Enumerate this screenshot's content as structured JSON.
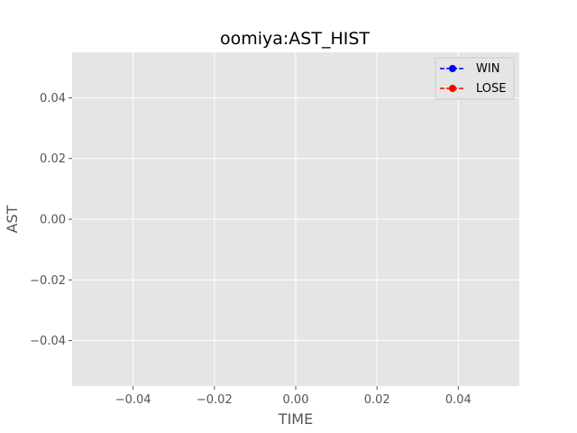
{
  "chart_data": {
    "type": "line",
    "title": "oomiya:AST_HIST",
    "xlabel": "TIME",
    "ylabel": "AST",
    "xlim": [
      -0.055,
      0.055
    ],
    "ylim": [
      -0.055,
      0.055
    ],
    "xticks": [
      -0.04,
      -0.02,
      0.0,
      0.02,
      0.04
    ],
    "yticks": [
      -0.04,
      -0.02,
      0.0,
      0.02,
      0.04
    ],
    "xtick_labels": [
      "−0.04",
      "−0.02",
      "0.00",
      "0.02",
      "0.04"
    ],
    "ytick_labels": [
      "−0.04",
      "−0.02",
      "0.00",
      "0.02",
      "0.04"
    ],
    "grid": true,
    "legend_position": "upper-right",
    "series": [
      {
        "name": "WIN",
        "color": "#0000ff",
        "marker": "circle",
        "linestyle": "dashed",
        "x": [],
        "y": []
      },
      {
        "name": "LOSE",
        "color": "#ff0000",
        "marker": "circle",
        "linestyle": "dashed",
        "x": [],
        "y": []
      }
    ]
  }
}
